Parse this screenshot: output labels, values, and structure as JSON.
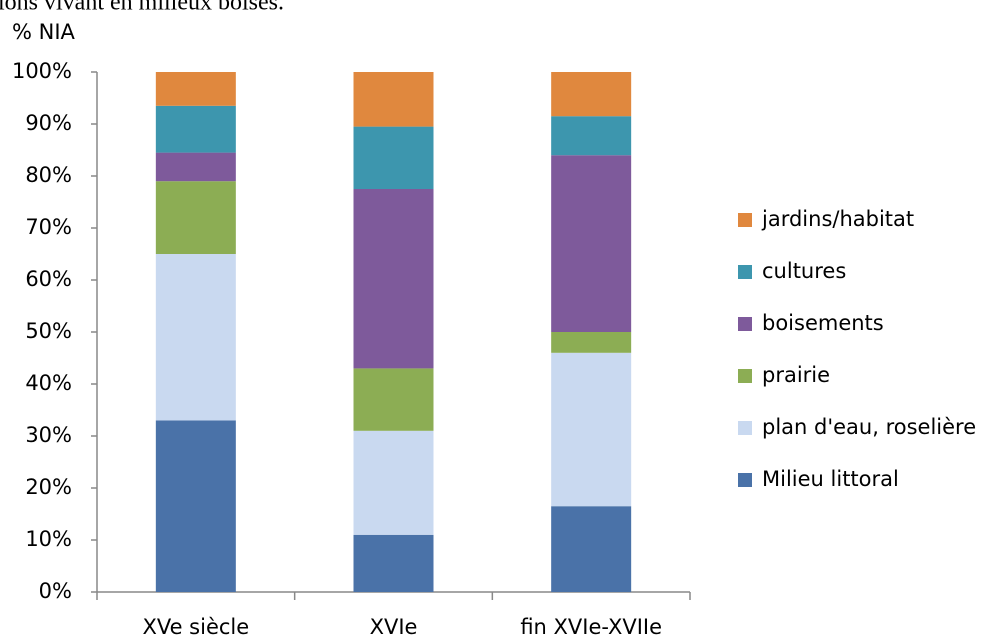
{
  "chart_data": {
    "type": "stacked-bar",
    "caption": "ions vivant en milieux boisés.",
    "y_label": "% NIA",
    "categories": [
      "XVe siècle",
      "XVIe",
      "fin XVIe-XVIIe"
    ],
    "series": [
      {
        "name": "Milieu littoral",
        "color": "#4a72a8",
        "values": [
          33,
          11,
          16.5
        ]
      },
      {
        "name": "plan d'eau, roselière",
        "color": "#c9d9f0",
        "values": [
          32,
          20,
          29.5
        ]
      },
      {
        "name": "prairie",
        "color": "#8cad54",
        "values": [
          14,
          12,
          4
        ]
      },
      {
        "name": "boisements",
        "color": "#7e5a9b",
        "values": [
          5.5,
          34.5,
          34
        ]
      },
      {
        "name": "cultures",
        "color": "#3d96ae",
        "values": [
          9,
          12,
          7.5
        ]
      },
      {
        "name": "jardins/habitat",
        "color": "#e0883e",
        "values": [
          6.5,
          10.5,
          8.5
        ]
      }
    ],
    "ylim": [
      0,
      100
    ],
    "yticks": [
      {
        "value": 0,
        "label": "0%"
      },
      {
        "value": 10,
        "label": "10%"
      },
      {
        "value": 20,
        "label": "20%"
      },
      {
        "value": 30,
        "label": "30%"
      },
      {
        "value": 40,
        "label": "40%"
      },
      {
        "value": 50,
        "label": "50%"
      },
      {
        "value": 60,
        "label": "60%"
      },
      {
        "value": 70,
        "label": "70%"
      },
      {
        "value": 80,
        "label": "80%"
      },
      {
        "value": 90,
        "label": "90%"
      },
      {
        "value": 100,
        "label": "100%"
      }
    ]
  }
}
